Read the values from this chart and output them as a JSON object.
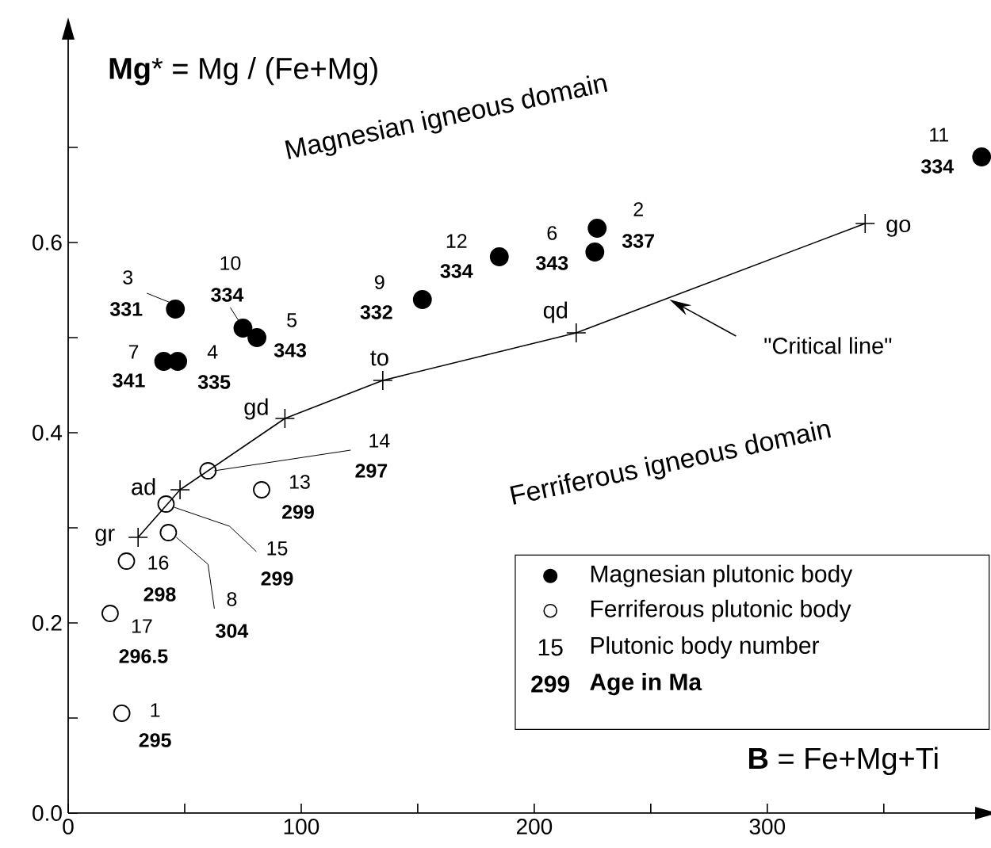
{
  "chart_data": {
    "type": "scatter",
    "xlabel": "**B** = Fe+Mg+Ti",
    "ylabel": "**Mg*** = Mg / (Fe+Mg)",
    "xlim": [
      0,
      396
    ],
    "ylim": [
      0,
      0.83
    ],
    "xticks": [
      0,
      {
        "value": 50,
        "label": null
      },
      100,
      {
        "value": 150,
        "label": null
      },
      200,
      {
        "value": 250,
        "label": null
      },
      300,
      {
        "value": 350,
        "label": null
      }
    ],
    "yticks": [
      {
        "value": 0,
        "label": "0.0"
      },
      {
        "value": 0.1,
        "label": null
      },
      {
        "value": 0.2,
        "label": "0.2"
      },
      {
        "value": 0.3,
        "label": null
      },
      {
        "value": 0.4,
        "label": "0.4"
      },
      {
        "value": 0.5,
        "label": null
      },
      {
        "value": 0.6,
        "label": "0.6"
      },
      {
        "value": 0.7,
        "label": null
      }
    ],
    "grid": false,
    "legend": "bottom right",
    "series": [
      {
        "name": "Magnesian plutonic body",
        "type": "scatter",
        "marker": "circle",
        "color": "#000000",
        "x": [
          46,
          75,
          81,
          41,
          47,
          152,
          185,
          226,
          227,
          392
        ],
        "values": [
          0.53,
          0.51,
          0.5,
          0.475,
          0.475,
          0.54,
          0.585,
          0.59,
          0.615,
          0.69
        ]
      },
      {
        "name": "Ferriferous plutonic body",
        "type": "scatter",
        "marker": "circle",
        "color": "#000000",
        "x": [
          60,
          83,
          42,
          43,
          25,
          18,
          23
        ],
        "values": [
          0.36,
          0.34,
          0.325,
          0.295,
          0.265,
          0.21,
          0.105
        ]
      },
      {
        "type": "line",
        "marker": "cross",
        "line_style": "solid",
        "color": "#000000",
        "x": [
          30,
          48,
          93,
          135,
          218,
          342
        ],
        "values": [
          0.29,
          0.34,
          0.415,
          0.455,
          0.505,
          0.62
        ]
      }
    ],
    "annotations": [
      "Magnesian igneous domain",
      "Ferriferous igneous domain",
      {
        "text": "\"Critical line\"",
        "x": 258,
        "y": 0.54
      },
      {
        "text": "gr",
        "x": 30,
        "y": 0.29
      },
      {
        "text": "ad",
        "x": 48,
        "y": 0.34
      },
      {
        "text": "gd",
        "x": 93,
        "y": 0.415
      },
      {
        "text": "to",
        "x": 135,
        "y": 0.455
      },
      {
        "text": "qd",
        "x": 218,
        "y": 0.505
      },
      {
        "text": "go",
        "x": 342,
        "y": 0.62
      },
      {
        "text": "3",
        "x": 46,
        "y": 0.53
      },
      {
        "text": "331",
        "x": 46,
        "y": 0.53
      },
      {
        "text": "10",
        "x": 75,
        "y": 0.51
      },
      {
        "text": "334",
        "x": 75,
        "y": 0.51
      },
      {
        "text": "5",
        "x": 81,
        "y": 0.5
      },
      {
        "text": "343",
        "x": 81,
        "y": 0.5
      },
      {
        "text": "7",
        "x": 41,
        "y": 0.475
      },
      {
        "text": "341",
        "x": 41,
        "y": 0.475
      },
      {
        "text": "4",
        "x": 47,
        "y": 0.475
      },
      {
        "text": "335",
        "x": 47,
        "y": 0.475
      },
      {
        "text": "9",
        "x": 152,
        "y": 0.54
      },
      {
        "text": "332",
        "x": 152,
        "y": 0.54
      },
      {
        "text": "12",
        "x": 185,
        "y": 0.585
      },
      {
        "text": "334",
        "x": 185,
        "y": 0.585
      },
      {
        "text": "6",
        "x": 226,
        "y": 0.59
      },
      {
        "text": "343",
        "x": 226,
        "y": 0.59
      },
      {
        "text": "2",
        "x": 227,
        "y": 0.615
      },
      {
        "text": "337",
        "x": 227,
        "y": 0.615
      },
      {
        "text": "11",
        "x": 392,
        "y": 0.69
      },
      {
        "text": "334",
        "x": 392,
        "y": 0.69
      },
      {
        "text": "14",
        "x": 60,
        "y": 0.36
      },
      {
        "text": "297",
        "x": 60,
        "y": 0.36
      },
      {
        "text": "13",
        "x": 83,
        "y": 0.34
      },
      {
        "text": "299",
        "x": 83,
        "y": 0.34
      },
      {
        "text": "15",
        "x": 42,
        "y": 0.325
      },
      {
        "text": "299",
        "x": 42,
        "y": 0.325
      },
      {
        "text": "8",
        "x": 43,
        "y": 0.295
      },
      {
        "text": "304",
        "x": 43,
        "y": 0.295
      },
      {
        "text": "16",
        "x": 25,
        "y": 0.265
      },
      {
        "text": "298",
        "x": 25,
        "y": 0.265
      },
      {
        "text": "17",
        "x": 18,
        "y": 0.21
      },
      {
        "text": "296.5",
        "x": 18,
        "y": 0.21
      },
      {
        "text": "1",
        "x": 23,
        "y": 0.105
      },
      {
        "text": "295",
        "x": 23,
        "y": 0.105
      },
      "15",
      "Plutonic body number",
      "299",
      "Age in Ma"
    ]
  }
}
